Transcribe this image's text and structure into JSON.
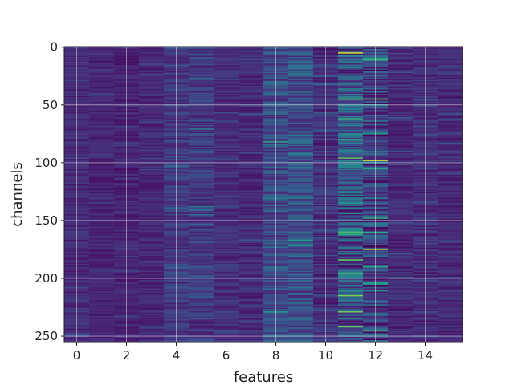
{
  "chart_data": {
    "type": "heatmap",
    "title": "",
    "xlabel": "features",
    "ylabel": "channels",
    "xlim": [
      -0.5,
      15.5
    ],
    "ylim": [
      255.5,
      -0.5
    ],
    "y_inverted": true,
    "n_cols": 16,
    "n_rows": 256,
    "colormap": "viridis",
    "grid": true,
    "xticks": [
      0,
      2,
      4,
      6,
      8,
      10,
      12,
      14
    ],
    "yticks": [
      0,
      50,
      100,
      150,
      200,
      250
    ],
    "background_level_by_feature": [
      0.12,
      0.1,
      0.09,
      0.11,
      0.16,
      0.17,
      0.13,
      0.12,
      0.22,
      0.24,
      0.14,
      0.26,
      0.2,
      0.11,
      0.13,
      0.12
    ],
    "variation_by_feature": [
      0.06,
      0.05,
      0.05,
      0.06,
      0.09,
      0.1,
      0.07,
      0.07,
      0.12,
      0.14,
      0.09,
      0.22,
      0.2,
      0.07,
      0.08,
      0.07
    ],
    "notable_cells": [
      {
        "feature": 11,
        "channel": 5,
        "value": 0.95
      },
      {
        "feature": 11,
        "channel": 45,
        "value": 0.85
      },
      {
        "feature": 11,
        "channel": 62,
        "value": 0.65
      },
      {
        "feature": 11,
        "channel": 80,
        "value": 0.7
      },
      {
        "feature": 11,
        "channel": 96,
        "value": 0.75
      },
      {
        "feature": 11,
        "channel": 135,
        "value": 0.55
      },
      {
        "feature": 11,
        "channel": 160,
        "value": 0.7
      },
      {
        "feature": 11,
        "channel": 215,
        "value": 0.8
      },
      {
        "feature": 11,
        "channel": 242,
        "value": 0.75
      },
      {
        "feature": 12,
        "channel": 45,
        "value": 0.8
      },
      {
        "feature": 12,
        "channel": 98,
        "value": 1.0
      },
      {
        "feature": 12,
        "channel": 148,
        "value": 0.65
      },
      {
        "feature": 12,
        "channel": 160,
        "value": 0.6
      },
      {
        "feature": 12,
        "channel": 175,
        "value": 0.9
      },
      {
        "feature": 12,
        "channel": 190,
        "value": 0.6
      },
      {
        "feature": 12,
        "channel": 205,
        "value": 0.55
      },
      {
        "feature": 12,
        "channel": 245,
        "value": 0.7
      },
      {
        "feature": 8,
        "channel": 82,
        "value": 0.6
      },
      {
        "feature": 8,
        "channel": 30,
        "value": 0.4
      },
      {
        "feature": 9,
        "channel": 130,
        "value": 0.4
      },
      {
        "feature": 10,
        "channel": 72,
        "value": 0.3
      }
    ],
    "colors": {
      "viridis_stops": [
        "#440154",
        "#482878",
        "#3e4989",
        "#31688e",
        "#26828e",
        "#1f9e89",
        "#35b779",
        "#6ece58",
        "#b5de2b",
        "#fde725"
      ],
      "grid": "#ffffff",
      "axis": "#222222"
    }
  }
}
